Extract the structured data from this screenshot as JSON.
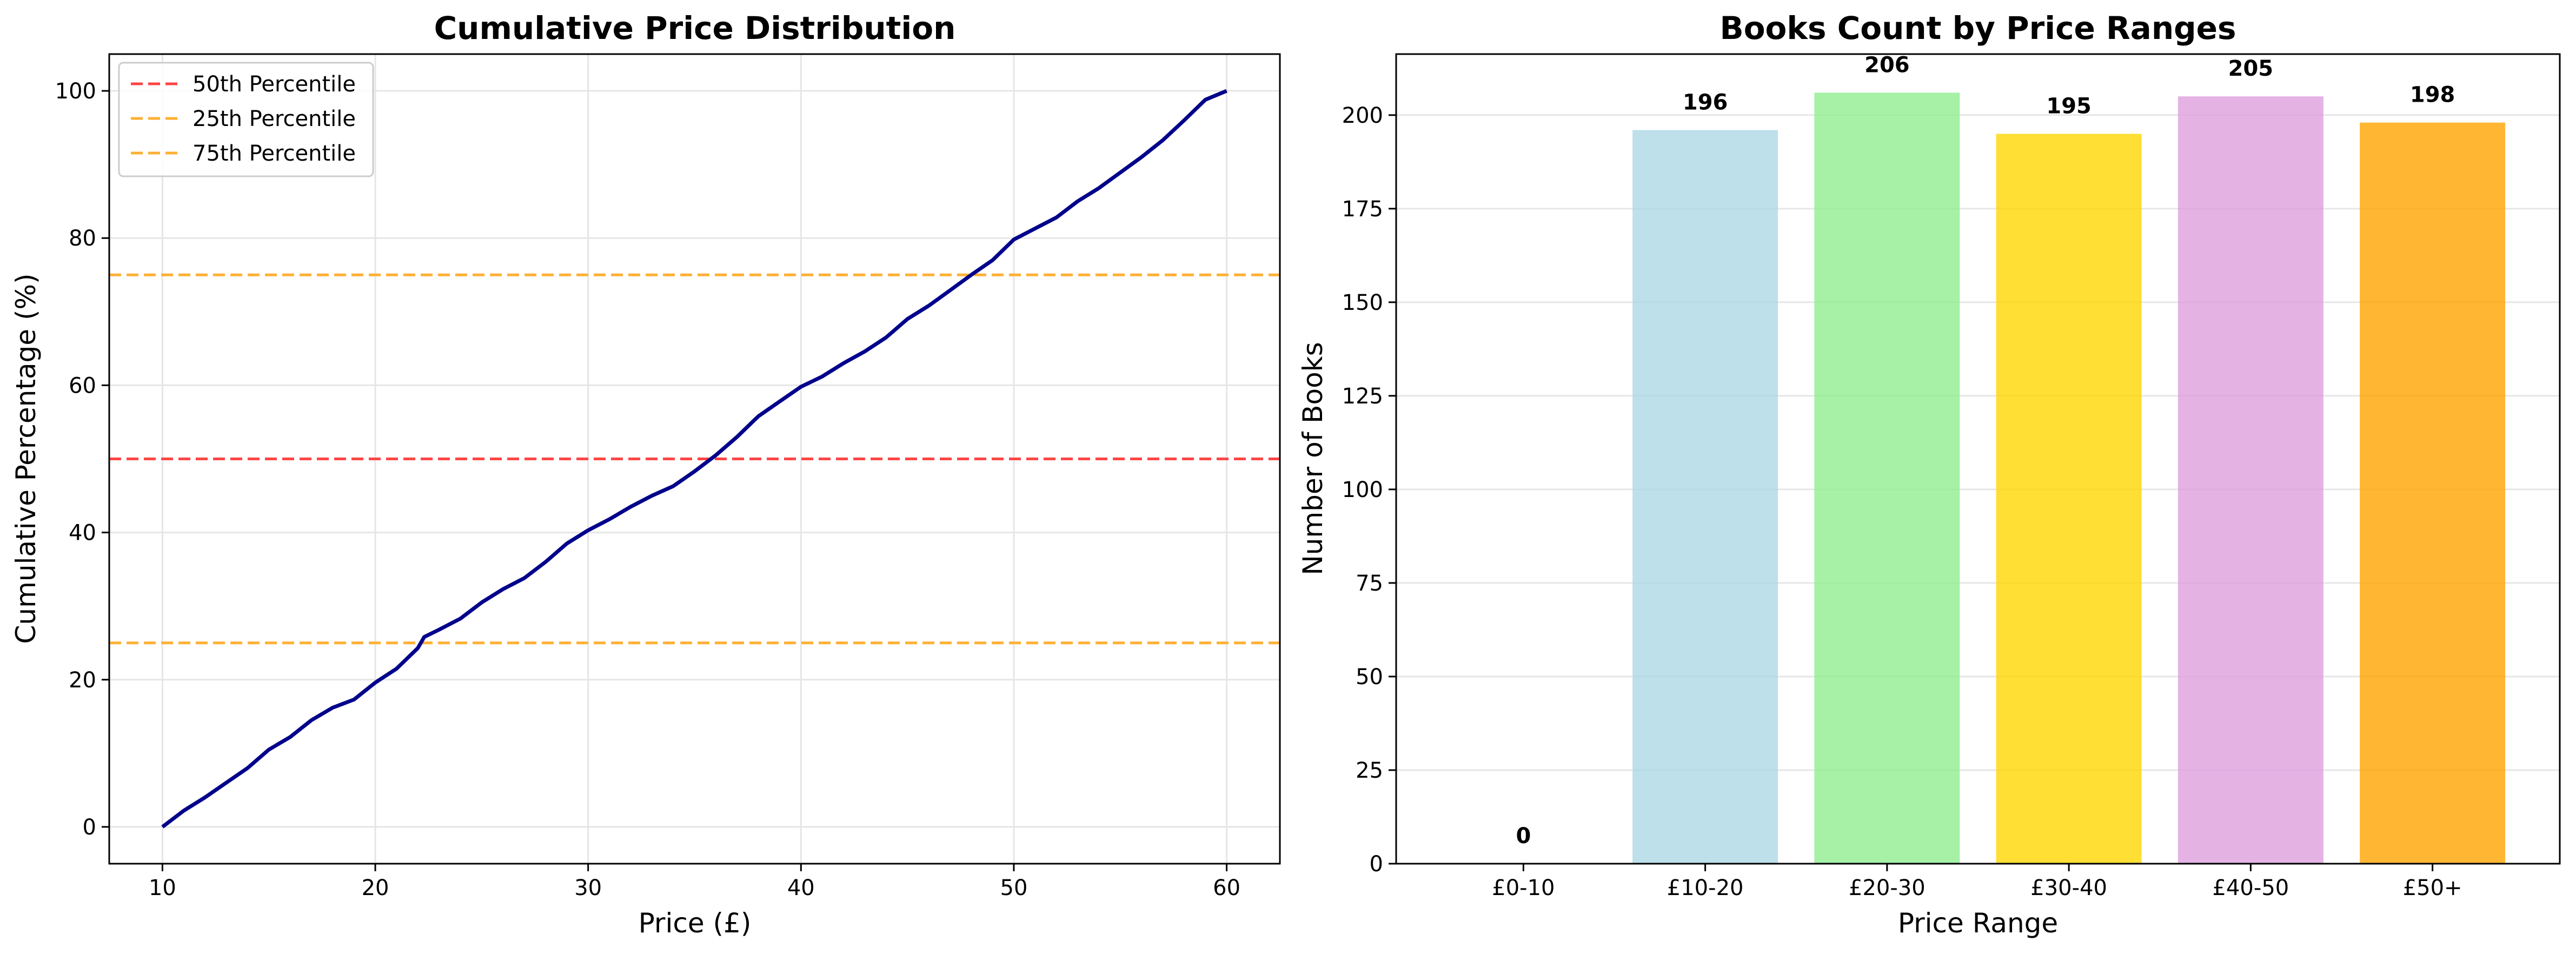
{
  "chart_data": [
    {
      "type": "line",
      "title": "Cumulative Price Distribution",
      "xlabel": "Price (£)",
      "ylabel": "Cumulative Percentage (%)",
      "xlim": [
        7.5,
        62.5
      ],
      "ylim": [
        -5,
        105
      ],
      "xticks": [
        "10",
        "20",
        "30",
        "40",
        "50",
        "60"
      ],
      "yticks": [
        "0",
        "20",
        "40",
        "60",
        "80",
        "100"
      ],
      "grid": true,
      "legend_position": "top-left",
      "series": [
        {
          "name": "",
          "color": "#00008b",
          "x": [
            10,
            11,
            12,
            13,
            14,
            15,
            16,
            17,
            18,
            19,
            20,
            21,
            22,
            22.3,
            23,
            24,
            25,
            26,
            27,
            28,
            29,
            30,
            31,
            32,
            33,
            34,
            35,
            36,
            37,
            38,
            39,
            40,
            41,
            42,
            43,
            44,
            45,
            46,
            47,
            48,
            49,
            50,
            51,
            52,
            53,
            54,
            55,
            56,
            57,
            58,
            59,
            60
          ],
          "y": [
            0,
            2.2,
            4.0,
            6.0,
            8.0,
            10.5,
            12.2,
            14.5,
            16.2,
            17.3,
            19.6,
            21.5,
            24.3,
            25.8,
            26.8,
            28.3,
            30.5,
            32.3,
            33.8,
            36.0,
            38.5,
            40.3,
            41.8,
            43.5,
            45.0,
            46.3,
            48.3,
            50.5,
            53.0,
            55.8,
            57.8,
            59.8,
            61.2,
            63.0,
            64.6,
            66.5,
            69.0,
            70.8,
            72.9,
            75.0,
            77.0,
            79.8,
            81.3,
            82.8,
            85.0,
            86.8,
            88.9,
            91.0,
            93.3,
            96.0,
            98.8,
            100
          ]
        }
      ],
      "hlines": [
        {
          "name": "50th Percentile",
          "y": 50,
          "color": "#ff4444"
        },
        {
          "name": "25th Percentile",
          "y": 25,
          "color": "#ffb033"
        },
        {
          "name": "75th Percentile",
          "y": 75,
          "color": "#ffb033"
        }
      ]
    },
    {
      "type": "bar",
      "title": "Books Count by Price Ranges",
      "xlabel": "Price Range",
      "ylabel": "Number of Books",
      "ylim": [
        0,
        216.3
      ],
      "yticks": [
        "0",
        "25",
        "50",
        "75",
        "100",
        "125",
        "150",
        "175",
        "200"
      ],
      "grid": true,
      "categories": [
        "£0-10",
        "£10-20",
        "£20-30",
        "£30-40",
        "£40-50",
        "£50+"
      ],
      "values": [
        0,
        196,
        206,
        195,
        205,
        198
      ],
      "data_labels": [
        "0",
        "196",
        "206",
        "195",
        "205",
        "198"
      ],
      "colors": [
        "#ff9999",
        "#add8e6",
        "#90ee90",
        "#ffd700",
        "#dda0dd",
        "#ffa500"
      ]
    }
  ]
}
